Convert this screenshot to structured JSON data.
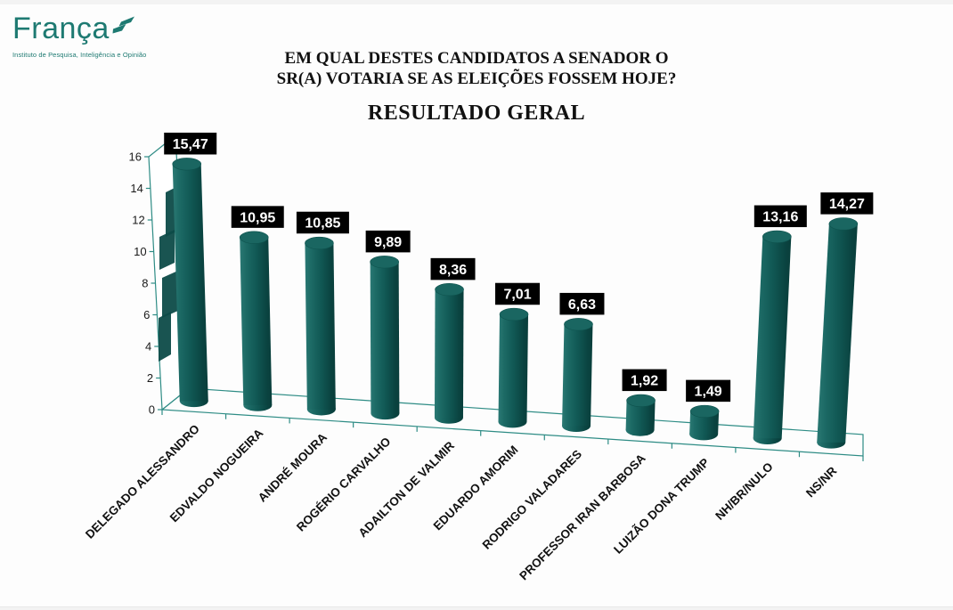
{
  "header": {
    "logo_text": "França",
    "tagline": "Instituto de Pesquisa, Inteligência e Opinião",
    "question_line1": "EM QUAL DESTES CANDIDATOS A SENADOR O",
    "question_line2": "SR(A) VOTARIA SE AS ELEIÇÕES FOSSEM HOJE?",
    "result_title": "RESULTADO GERAL"
  },
  "chart_data": {
    "type": "bar",
    "subtype": "3d-cylinder",
    "title": "RESULTADO GERAL",
    "categories": [
      "DELEGADO ALESSANDRO",
      "EDVALDO NOGUEIRA",
      "ANDRÉ MOURA",
      "ROGÉRIO CARVALHO",
      "ADAILTON DE VALMIR",
      "EDUARDO AMORIM",
      "RODRIGO VALADARES",
      "PROFESSOR IRAN BARBOSA",
      "LUIZÃO DONA TRUMP",
      "NH/BR/NULO",
      "NS/NR"
    ],
    "values": [
      15.47,
      10.95,
      10.85,
      9.89,
      8.36,
      7.01,
      6.63,
      1.92,
      1.49,
      13.16,
      14.27
    ],
    "value_labels": [
      "15,47",
      "10,95",
      "10,85",
      "9,89",
      "8,36",
      "7,01",
      "6,63",
      "1,92",
      "1,49",
      "13,16",
      "14,27"
    ],
    "y_ticks": [
      0,
      2,
      4,
      6,
      8,
      10,
      12,
      14,
      16
    ],
    "ylim": [
      0,
      16
    ],
    "xlabel": "",
    "ylabel": "",
    "legend": null,
    "grid": false,
    "colors": {
      "cylinder_light": "#2b7974",
      "cylinder_mid": "#115955",
      "cylinder_dark": "#0a4340",
      "cylinder_top": "#1a6661",
      "frame": "#2e8c85",
      "wall_shadow": "#0d4b48",
      "label_bg": "#000000",
      "label_fg": "#ffffff",
      "axis_text": "#1a1a1a"
    }
  }
}
